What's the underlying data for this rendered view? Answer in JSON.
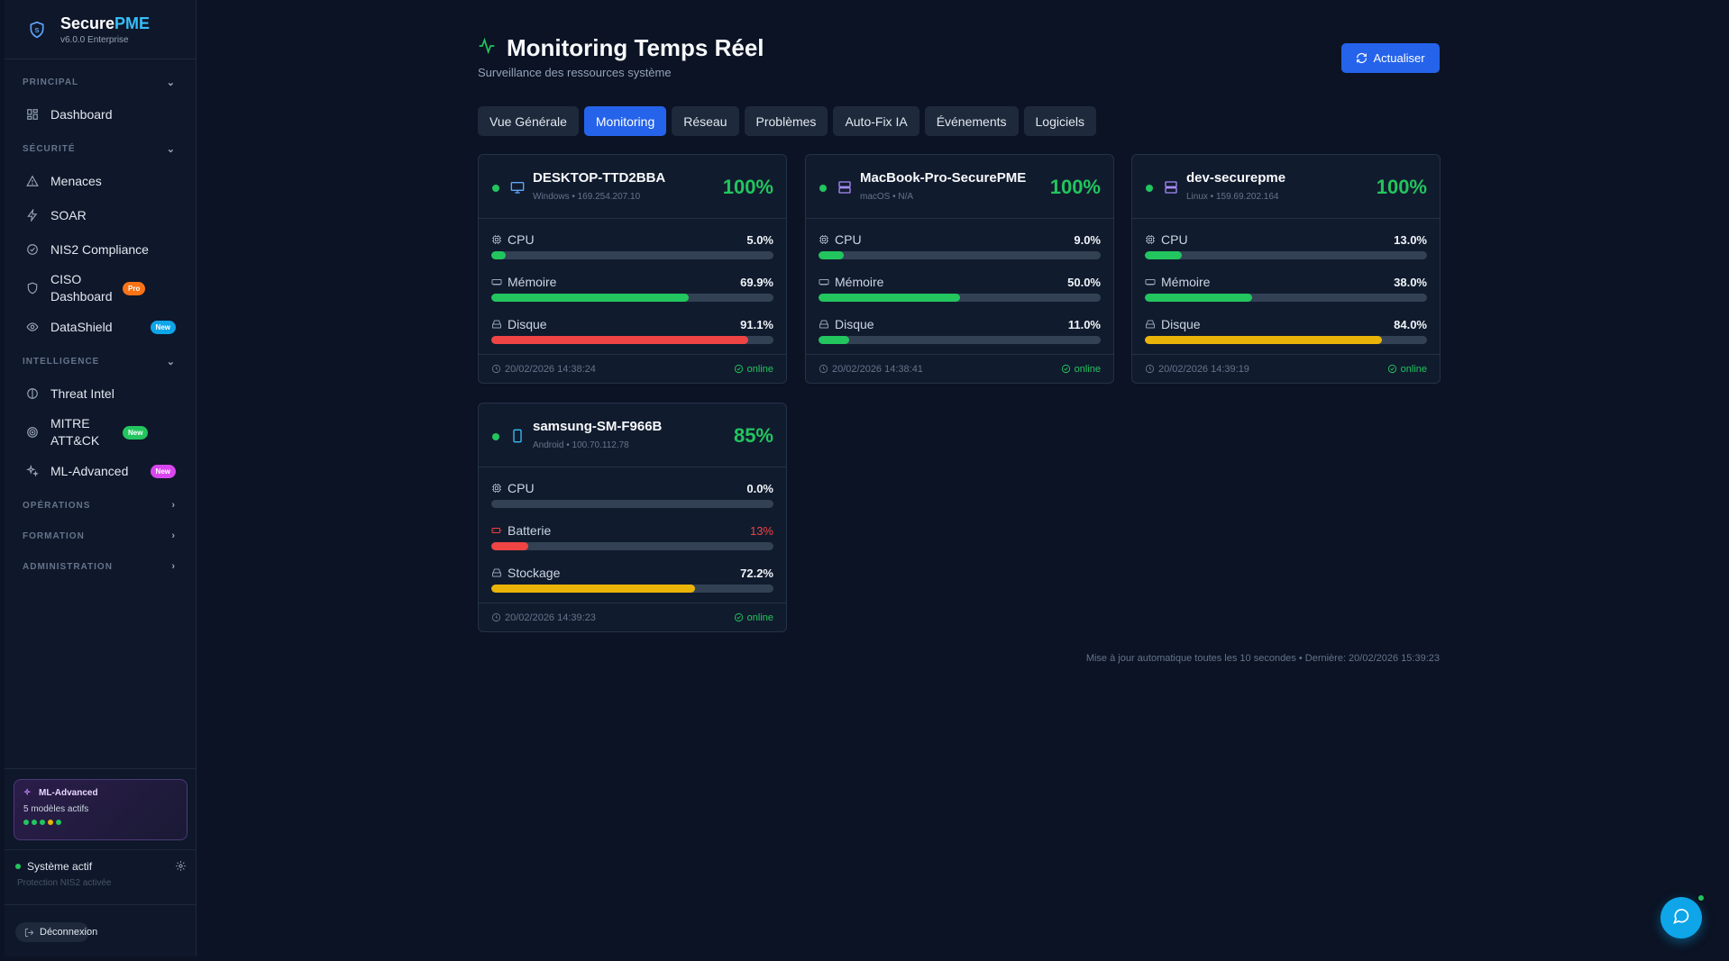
{
  "brand": {
    "name_a": "Secure",
    "name_b": "PME",
    "version": "v6.0.0 Enterprise"
  },
  "sidebar": {
    "sections": {
      "principal": "PRINCIPAL",
      "securite": "SÉCURITÉ",
      "intelligence": "INTELLIGENCE",
      "operations": "OPÉRATIONS",
      "formation": "FORMATION",
      "administration": "ADMINISTRATION"
    },
    "items": {
      "dashboard": "Dashboard",
      "menaces": "Menaces",
      "soar": "SOAR",
      "nis2": "NIS2 Compliance",
      "ciso": "CISO Dashboard",
      "ciso_badge": "Pro",
      "datashield": "DataShield",
      "datashield_badge": "New",
      "threat_intel": "Threat Intel",
      "mitre": "MITRE ATT&CK",
      "mitre_badge": "New",
      "ml_advanced": "ML-Advanced",
      "ml_badge": "New"
    },
    "ml_card": {
      "title": "ML-Advanced",
      "subtitle": "5 modèles actifs"
    },
    "system": {
      "status": "Système actif",
      "sub": "Protection NIS2 activée"
    },
    "logout": "Déconnexion"
  },
  "header": {
    "title": "Monitoring Temps Réel",
    "subtitle": "Surveillance des ressources système",
    "refresh_label": "Actualiser"
  },
  "tabs": [
    "Vue Générale",
    "Monitoring",
    "Réseau",
    "Problèmes",
    "Auto-Fix IA",
    "Événements",
    "Logiciels"
  ],
  "devices": [
    {
      "name": "DESKTOP-TTD2BBA",
      "meta": "Windows • 169.254.207.10",
      "score": "100%",
      "metrics": [
        {
          "label": "CPU",
          "value": "5.0%",
          "fraction": 0.05
        },
        {
          "label": "Mémoire",
          "value": "69.9%",
          "fraction": 0.699
        },
        {
          "label": "Disque",
          "value": "91.1%",
          "fraction": 0.911
        }
      ],
      "timestamp": "20/02/2026 14:38:24",
      "status": "online"
    },
    {
      "name": "MacBook-Pro-SecurePME",
      "meta": "macOS • N/A",
      "score": "100%",
      "metrics": [
        {
          "label": "CPU",
          "value": "9.0%",
          "fraction": 0.09
        },
        {
          "label": "Mémoire",
          "value": "50.0%",
          "fraction": 0.5
        },
        {
          "label": "Disque",
          "value": "11.0%",
          "fraction": 0.11
        }
      ],
      "timestamp": "20/02/2026 14:38:41",
      "status": "online"
    },
    {
      "name": "dev-securepme",
      "meta": "Linux • 159.69.202.164",
      "score": "100%",
      "metrics": [
        {
          "label": "CPU",
          "value": "13.0%",
          "fraction": 0.13
        },
        {
          "label": "Mémoire",
          "value": "38.0%",
          "fraction": 0.38
        },
        {
          "label": "Disque",
          "value": "84.0%",
          "fraction": 0.84
        }
      ],
      "timestamp": "20/02/2026 14:39:19",
      "status": "online"
    },
    {
      "name": "samsung-SM-F966B",
      "meta": "Android • 100.70.112.78",
      "score": "85%",
      "metrics": [
        {
          "label": "CPU",
          "value": "0.0%",
          "fraction": 0.0
        },
        {
          "label": "Batterie",
          "value": "13%",
          "fraction": 0.13
        },
        {
          "label": "Stockage",
          "value": "72.2%",
          "fraction": 0.722
        }
      ],
      "timestamp": "20/02/2026 14:39:23",
      "status": "online"
    }
  ],
  "footer_note": "Mise à jour automatique toutes les 10 secondes • Dernière: 20/02/2026 15:39:23",
  "colors": {
    "accent": "#2563eb",
    "ok": "#22c55e",
    "warn": "#eab308",
    "danger": "#ef4444",
    "bg": "#0b1324"
  }
}
